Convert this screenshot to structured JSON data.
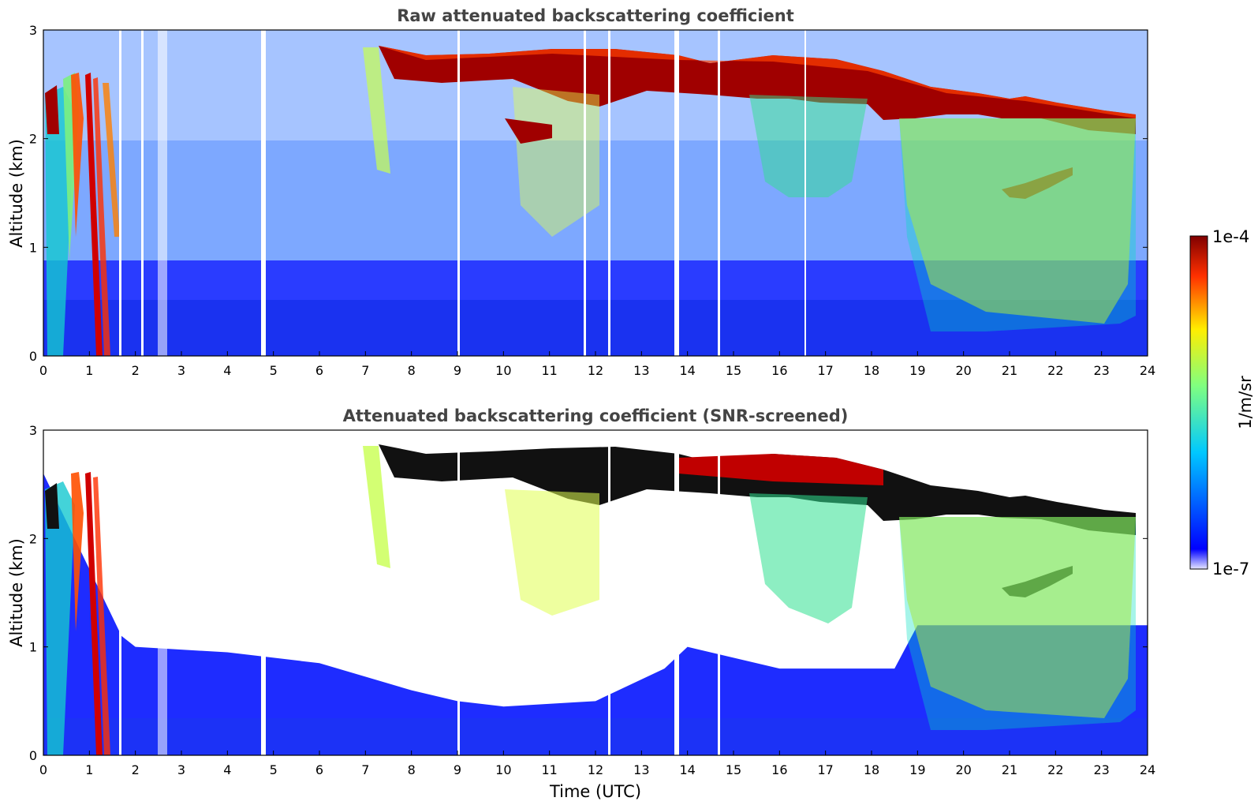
{
  "chart_data": [
    {
      "type": "heatmap",
      "title": "Raw attenuated backscattering coefficient",
      "xlabel": "",
      "ylabel": "Altitude (km)",
      "xlim": [
        0,
        24
      ],
      "ylim": [
        0,
        3
      ],
      "x_ticks": [
        "0",
        "1",
        "2",
        "3",
        "4",
        "5",
        "6",
        "7",
        "8",
        "9",
        "10",
        "11",
        "12",
        "13",
        "14",
        "15",
        "16",
        "17",
        "18",
        "19",
        "20",
        "21",
        "22",
        "23",
        "24"
      ],
      "y_ticks": [
        "0",
        "1",
        "2",
        "3"
      ],
      "color_scale": "log, 1e-7 to 1e-4 1/m/sr, jet",
      "features": [
        {
          "name": "low fog/cloud streaks",
          "x_range": [
            0,
            1.7
          ],
          "altitude_km": [
            0,
            2.6
          ]
        },
        {
          "name": "cloud layer",
          "x_range": [
            7.3,
            21.0
          ],
          "altitude_km": [
            2.2,
            2.8
          ]
        },
        {
          "name": "cloud layer",
          "x_range": [
            21.0,
            23.8
          ],
          "altitude_km": [
            2.0,
            2.3
          ]
        },
        {
          "name": "lower cloud",
          "x_range": [
            21.0,
            22.3
          ],
          "altitude_km": [
            1.45,
            1.6
          ]
        },
        {
          "name": "precipitation / aerosol fall streaks",
          "x_range": [
            19.0,
            23.8
          ],
          "altitude_km": [
            0.2,
            2.0
          ]
        },
        {
          "name": "boundary layer aerosol",
          "x_range": [
            0,
            24
          ],
          "altitude_km": [
            0,
            0.8
          ]
        }
      ]
    },
    {
      "type": "heatmap",
      "title": "Attenuated backscattering coefficient (SNR-screened)",
      "xlabel": "Time (UTC)",
      "ylabel": "Altitude (km)",
      "xlim": [
        0,
        24
      ],
      "ylim": [
        0,
        3
      ],
      "x_ticks": [
        "0",
        "1",
        "2",
        "3",
        "4",
        "5",
        "6",
        "7",
        "8",
        "9",
        "10",
        "11",
        "12",
        "13",
        "14",
        "15",
        "16",
        "17",
        "18",
        "19",
        "20",
        "21",
        "22",
        "23",
        "24"
      ],
      "y_ticks": [
        "0",
        "1",
        "2",
        "3"
      ],
      "color_scale": "log, 1e-7 to 1e-4 1/m/sr, jet",
      "screened_boundary_altitude_km": [
        [
          0,
          2.6
        ],
        [
          1.7,
          1.1
        ],
        [
          2,
          1.0
        ],
        [
          4,
          0.95
        ],
        [
          6,
          0.85
        ],
        [
          8,
          0.6
        ],
        [
          9,
          0.5
        ],
        [
          10,
          0.45
        ],
        [
          12,
          0.5
        ],
        [
          13.5,
          0.8
        ],
        [
          14,
          1.0
        ],
        [
          16,
          0.8
        ],
        [
          18.5,
          0.8
        ],
        [
          19,
          1.2
        ]
      ]
    }
  ],
  "colorbar": {
    "label": "1/m/sr",
    "max_label": "1e-4",
    "min_label": "1e-7",
    "colors": [
      "#e6e6ff",
      "#0000ff",
      "#00c8ff",
      "#80ff80",
      "#ffee00",
      "#ff3000",
      "#800000"
    ]
  }
}
